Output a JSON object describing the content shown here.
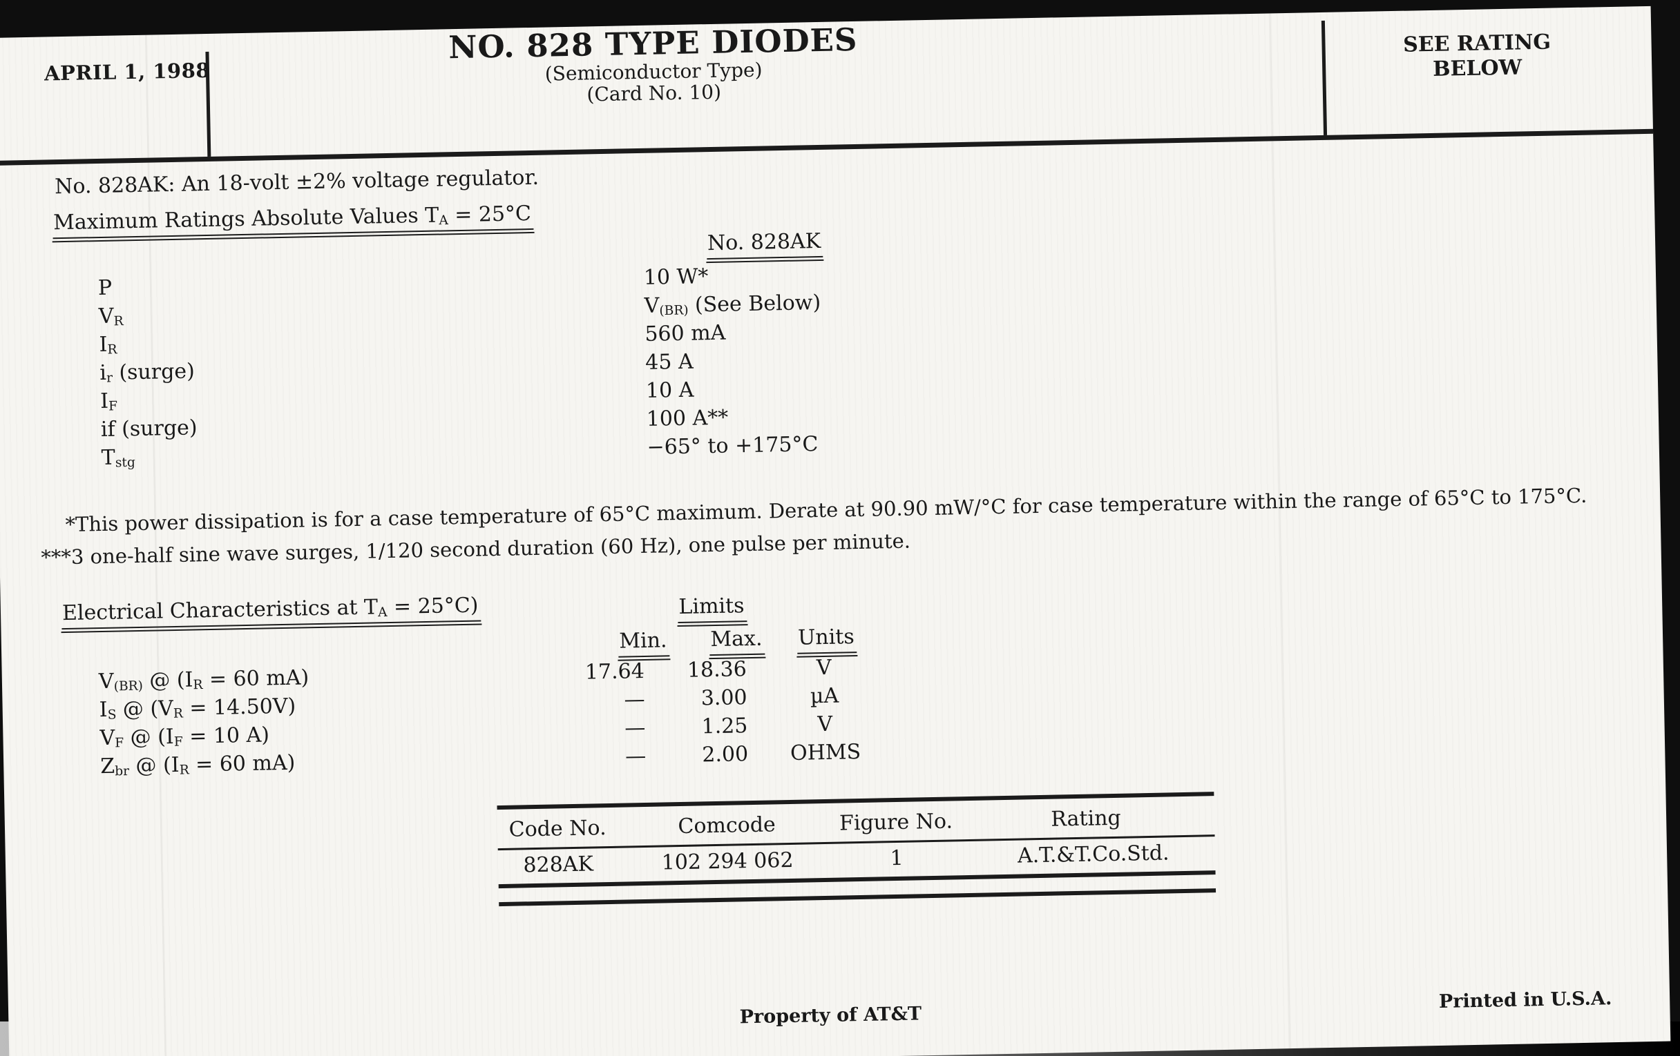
{
  "header": {
    "date": "APRIL 1, 1988",
    "title": "NO. 828 TYPE DIODES",
    "subtitle1": "(Semiconductor Type)",
    "subtitle2": "(Card No. 10)",
    "rating_note_line1": "SEE RATING",
    "rating_note_line2": "BELOW"
  },
  "intro": "No. 828AK: An 18-volt ±2% voltage regulator.",
  "max_ratings": {
    "heading": [
      "Maximum Ratings Absolute Values T",
      "A",
      " = 25°C"
    ],
    "column_header": "No. 828AK",
    "rows": [
      {
        "symbol": [
          "P"
        ],
        "value": [
          "10 W*"
        ]
      },
      {
        "symbol": [
          "V",
          "R"
        ],
        "value": [
          "V",
          "(BR)",
          " (See Below)"
        ]
      },
      {
        "symbol": [
          "I",
          "R"
        ],
        "value": [
          "560 mA"
        ]
      },
      {
        "symbol": [
          "i",
          "r",
          " (surge)"
        ],
        "value": [
          "45 A"
        ]
      },
      {
        "symbol": [
          "I",
          "F"
        ],
        "value": [
          "10 A"
        ]
      },
      {
        "symbol": [
          "if (surge)"
        ],
        "value": [
          "100 A**"
        ]
      },
      {
        "symbol": [
          "T",
          "stg"
        ],
        "value": [
          "−65° to +175°C"
        ]
      }
    ],
    "footnotes": [
      "*This power dissipation is for a case temperature of 65°C maximum. Derate at 90.90 mW/°C for case temperature within the range of 65°C to 175°C.",
      "***3 one-half sine wave surges, 1/120 second duration (60 Hz), one pulse per minute."
    ]
  },
  "electrical": {
    "heading": [
      "Electrical Characteristics at T",
      "A",
      " = 25°C)"
    ],
    "limits_label": "Limits",
    "columns": [
      "Min.",
      "Max.",
      "Units"
    ],
    "rows": [
      {
        "label": [
          "V",
          "(BR)",
          " @  (I",
          "R",
          " = 60 mA)"
        ],
        "min": "17.64",
        "max": "18.36",
        "units": "V"
      },
      {
        "label": [
          "I",
          "S",
          " @  (V",
          "R",
          " = 14.50V)"
        ],
        "min": "—",
        "max": "3.00",
        "units": "µA"
      },
      {
        "label": [
          "V",
          "F",
          " @  (I",
          "F",
          " = 10 A)"
        ],
        "min": "—",
        "max": "1.25",
        "units": "V"
      },
      {
        "label": [
          "Z",
          "br",
          " @  (I",
          "R",
          " = 60 mA)"
        ],
        "min": "—",
        "max": "2.00",
        "units": "OHMS"
      }
    ]
  },
  "code_table": {
    "headers": [
      "Code No.",
      "Comcode",
      "Figure No.",
      "Rating"
    ],
    "rows": [
      [
        "828AK",
        "102 294 062",
        "1",
        "A.T.&T.Co.Std."
      ]
    ]
  },
  "footer": {
    "property": "Property of AT&T",
    "printed": "Printed in U.S.A."
  },
  "colors": {
    "ink": "#191919",
    "paper": "#f6f5f1",
    "scan_edge": "#0e0e0e"
  }
}
